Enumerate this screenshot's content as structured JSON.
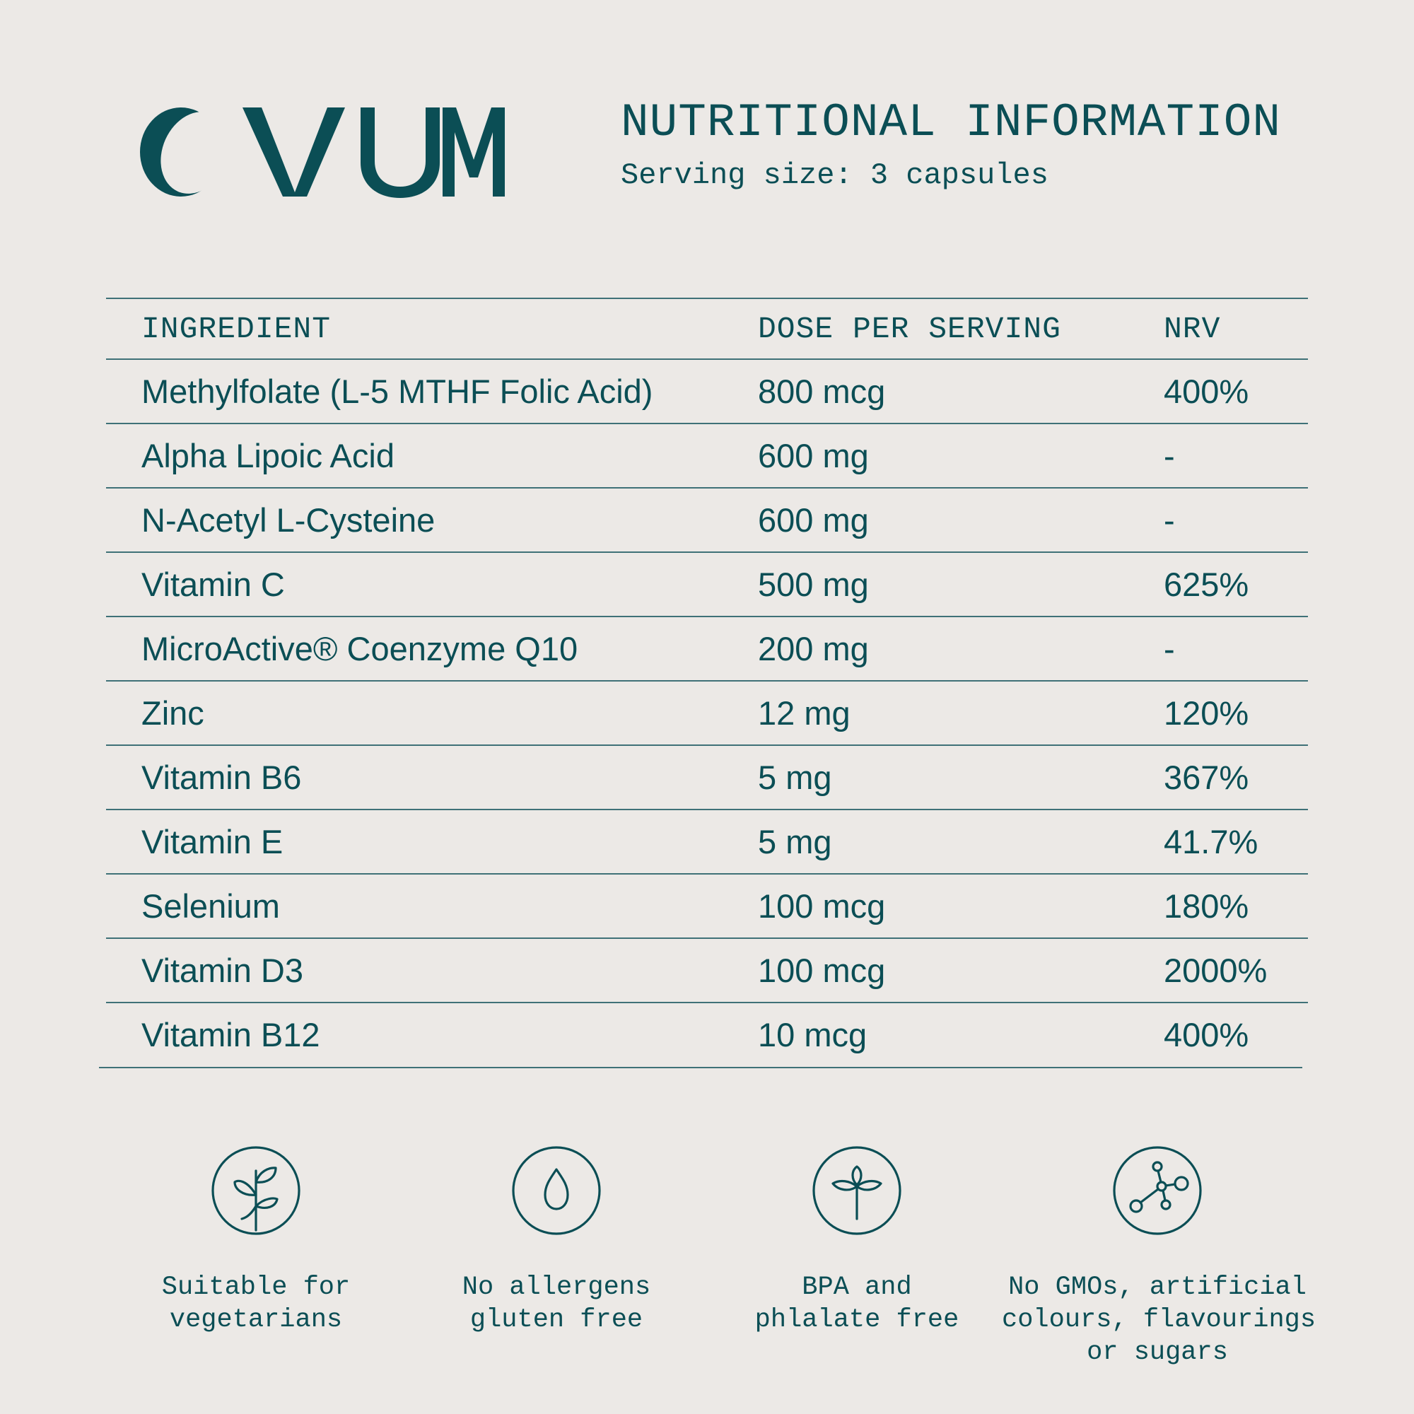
{
  "brand": {
    "name": "OVUM",
    "color": "#0b4e55",
    "background": "#ece9e6"
  },
  "heading": {
    "title": "NUTRITIONAL INFORMATION",
    "serving": "Serving size: 3 capsules"
  },
  "table": {
    "headers": {
      "ingredient": "INGREDIENT",
      "dose": "DOSE PER SERVING",
      "nrv": "NRV"
    },
    "rows": [
      {
        "ingredient": "Methylfolate (L-5 MTHF Folic Acid)",
        "dose": "800 mcg",
        "nrv": "400%"
      },
      {
        "ingredient": "Alpha Lipoic Acid",
        "dose": "600 mg",
        "nrv": "-"
      },
      {
        "ingredient": "N-Acetyl L-Cysteine",
        "dose": "600 mg",
        "nrv": "-"
      },
      {
        "ingredient": "Vitamin C",
        "dose": "500 mg",
        "nrv": "625%"
      },
      {
        "ingredient": "MicroActive® Coenzyme Q10",
        "dose": "200 mg",
        "nrv": "-"
      },
      {
        "ingredient": "Zinc",
        "dose": "12 mg",
        "nrv": "120%"
      },
      {
        "ingredient": "Vitamin B6",
        "dose": "5 mg",
        "nrv": "367%"
      },
      {
        "ingredient": "Vitamin E",
        "dose": "5 mg",
        "nrv": "41.7%"
      },
      {
        "ingredient": "Selenium",
        "dose": "100 mcg",
        "nrv": "180%"
      },
      {
        "ingredient": "Vitamin D3",
        "dose": "100 mcg",
        "nrv": "2000%"
      },
      {
        "ingredient": "Vitamin B12",
        "dose": "10 mcg",
        "nrv": "400%"
      }
    ]
  },
  "features": [
    {
      "icon": "plant-sprout-icon",
      "lines": [
        "Suitable for",
        "vegetarians"
      ]
    },
    {
      "icon": "water-drop-icon",
      "lines": [
        "No allergens",
        "gluten free"
      ]
    },
    {
      "icon": "flower-icon",
      "lines": [
        "BPA and",
        "phlalate free"
      ]
    },
    {
      "icon": "molecule-icon",
      "lines": [
        "No GMOs, artificial",
        "colours, flavourings",
        "or sugars"
      ]
    }
  ]
}
